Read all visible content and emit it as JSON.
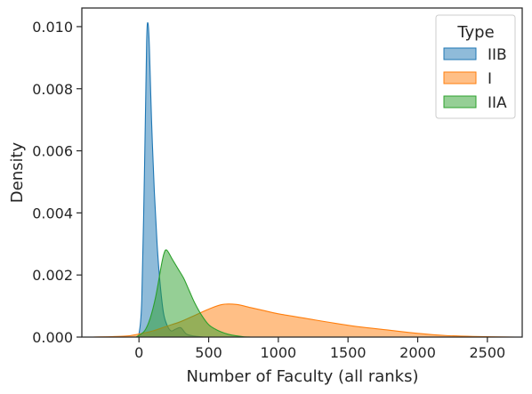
{
  "chart_data": {
    "type": "area",
    "subtype": "kde",
    "xlabel": "Number of Faculty (all ranks)",
    "ylabel": "Density",
    "xlim": [
      -410,
      2750
    ],
    "ylim": [
      0,
      0.0106
    ],
    "xticks": [
      0,
      500,
      1000,
      1500,
      2000,
      2500
    ],
    "yticks": [
      0.0,
      0.002,
      0.004,
      0.006,
      0.008,
      0.01
    ],
    "ytick_labels": [
      "0.000",
      "0.002",
      "0.004",
      "0.006",
      "0.008",
      "0.010"
    ],
    "grid": false,
    "legend": {
      "title": "Type",
      "placement": "top-right"
    },
    "series": [
      {
        "name": "IIB",
        "color": "#1f77b4",
        "x": [
          -10,
          0,
          20,
          40,
          55,
          65,
          75,
          90,
          110,
          130,
          150,
          175,
          200,
          230,
          260,
          300,
          340,
          400,
          460
        ],
        "y": [
          0,
          0.0001,
          0.0012,
          0.0055,
          0.0095,
          0.0101,
          0.0093,
          0.007,
          0.0047,
          0.003,
          0.0018,
          0.0008,
          0.0004,
          0.0002,
          0.00025,
          0.0003,
          0.0001,
          3e-05,
          0
        ]
      },
      {
        "name": "I",
        "color": "#ff7f0e",
        "x": [
          -330,
          -100,
          0,
          100,
          200,
          300,
          400,
          500,
          600,
          700,
          800,
          900,
          1000,
          1200,
          1400,
          1600,
          1800,
          2000,
          2200,
          2400,
          2700
        ],
        "y": [
          0,
          3e-05,
          0.0001,
          0.0002,
          0.00035,
          0.0005,
          0.0007,
          0.0009,
          0.00105,
          0.00105,
          0.00095,
          0.00085,
          0.00075,
          0.0006,
          0.00045,
          0.00032,
          0.00022,
          0.00012,
          5e-05,
          2e-05,
          0
        ]
      },
      {
        "name": "IIA",
        "color": "#2ca02c",
        "x": [
          -20,
          40,
          80,
          120,
          160,
          180,
          200,
          240,
          280,
          320,
          360,
          400,
          450,
          500,
          550,
          600,
          650,
          700,
          750,
          800
        ],
        "y": [
          0,
          0.0002,
          0.0006,
          0.0013,
          0.0023,
          0.0027,
          0.0028,
          0.0025,
          0.0022,
          0.0019,
          0.0015,
          0.0011,
          0.0007,
          0.0004,
          0.00025,
          0.00015,
          8e-05,
          4e-05,
          1e-05,
          0
        ]
      }
    ]
  }
}
